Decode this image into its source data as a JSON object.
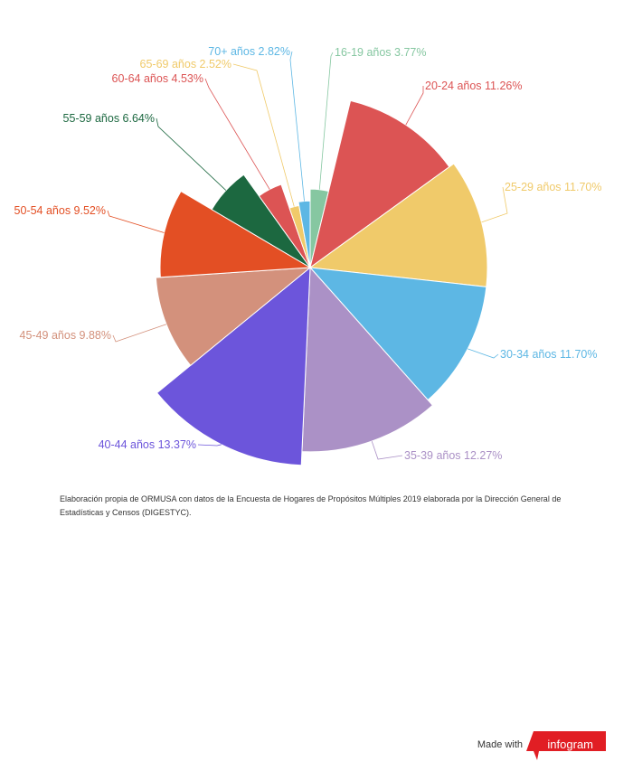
{
  "chart_data": {
    "type": "pie",
    "variant": "variable-radius",
    "title": "",
    "slices": [
      {
        "label": "16-19 años 3.77%",
        "value": 3.77,
        "color": "#86c7a1",
        "label_color": "#86c7a1"
      },
      {
        "label": "20-24 años 11.26%",
        "value": 11.26,
        "color": "#dc5454",
        "label_color": "#dc5454"
      },
      {
        "label": "25-29 años 11.70%",
        "value": 11.7,
        "color": "#f0ca6a",
        "label_color": "#f0ca6a"
      },
      {
        "label": "30-34 años 11.70%",
        "value": 11.7,
        "color": "#5db7e4",
        "label_color": "#5db7e4"
      },
      {
        "label": "35-39 años 12.27%",
        "value": 12.27,
        "color": "#ab91c6",
        "label_color": "#ab91c6"
      },
      {
        "label": "40-44 años 13.37%",
        "value": 13.37,
        "color": "#6c55db",
        "label_color": "#6c55db"
      },
      {
        "label": "45-49 años 9.88%",
        "value": 9.88,
        "color": "#d3917c",
        "label_color": "#d3917c"
      },
      {
        "label": "50-54 años 9.52%",
        "value": 9.52,
        "color": "#e34f24",
        "label_color": "#e34f24"
      },
      {
        "label": "55-59 años 6.64%",
        "value": 6.64,
        "color": "#1c6840",
        "label_color": "#1c6840"
      },
      {
        "label": "60-64 años 4.53%",
        "value": 4.53,
        "color": "#dc5454",
        "label_color": "#dc5454"
      },
      {
        "label": "65-69 años 2.52%",
        "value": 2.52,
        "color": "#f0ca6a",
        "label_color": "#f0ca6a"
      },
      {
        "label": "70+ años 2.82%",
        "value": 2.82,
        "color": "#5db7e4",
        "label_color": "#5db7e4"
      }
    ]
  },
  "source_note": "Elaboración propia de ORMUSA con datos de la Encuesta de Hogares de Propósitos Múltiples 2019  elaborada por la Dirección General de Estadísticas y Censos (DIGESTYC).",
  "footer": {
    "made_with": "Made with",
    "brand": "infogram",
    "brand_color": "#e11e24"
  }
}
